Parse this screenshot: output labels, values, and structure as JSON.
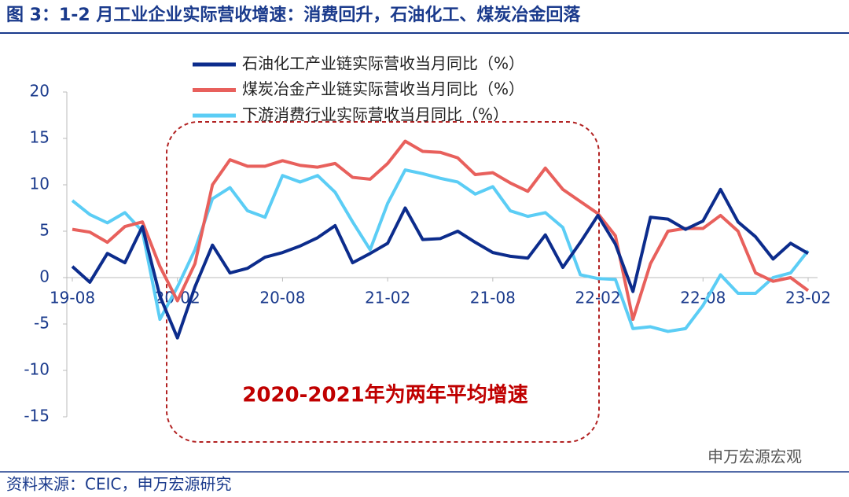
{
  "chart_data": {
    "type": "line",
    "title": "图 3：1-2 月工业企业实际营收增速：消费回升，石油化工、煤炭冶金回落",
    "annotation": "2020-2021年为两年平均增速",
    "source": "资料来源：CEIC，申万宏源研究",
    "watermark": "申万宏源宏观",
    "categories": [
      "19-08",
      null,
      null,
      null,
      null,
      null,
      "20-02",
      null,
      null,
      null,
      null,
      null,
      "20-08",
      null,
      null,
      null,
      null,
      null,
      "21-02",
      null,
      null,
      null,
      null,
      null,
      "21-08",
      null,
      null,
      null,
      null,
      null,
      "22-02",
      null,
      null,
      null,
      null,
      null,
      "22-08",
      null,
      null,
      null,
      null,
      null,
      "23-02"
    ],
    "series": [
      {
        "name": "石油化工产业链实际营收当月同比（%）",
        "color": "#0c2c8c",
        "values": [
          1.2,
          -0.5,
          2.6,
          1.6,
          5.5,
          -2,
          -6.5,
          -1,
          3.5,
          0.5,
          1,
          2.2,
          2.7,
          3.4,
          4.3,
          5.6,
          1.6,
          2.6,
          3.7,
          7.5,
          4.1,
          4.2,
          5,
          3.8,
          2.7,
          2.3,
          2.1,
          4.6,
          1.1,
          3.8,
          6.7,
          3.6,
          -1.5,
          6.5,
          6.3,
          5.2,
          6.1,
          9.5,
          6,
          4.4,
          2,
          3.7,
          2.6
        ]
      },
      {
        "name": "煤炭冶金产业链实际营收当月同比（%）",
        "color": "#e8605c",
        "values": [
          5.2,
          4.9,
          3.8,
          5.5,
          6,
          1.2,
          -2.5,
          1.5,
          10,
          12.7,
          12,
          12,
          12.6,
          12.1,
          11.9,
          12.3,
          10.8,
          10.6,
          12.3,
          14.7,
          13.6,
          13.5,
          12.9,
          11.1,
          11.3,
          10.2,
          9.3,
          11.8,
          9.5,
          8.2,
          6.9,
          4.5,
          -4.5,
          1.5,
          5,
          5.3,
          5.3,
          6.7,
          5,
          0.5,
          -0.4,
          0,
          -1.4
        ]
      },
      {
        "name": "下游消费行业实际营收当月同比（%）",
        "color": "#5bcdf5",
        "values": [
          8.3,
          6.8,
          5.9,
          7,
          5,
          -4.5,
          -1,
          3,
          8.5,
          9.7,
          7.2,
          6.5,
          11,
          10.3,
          11,
          9.2,
          6,
          3,
          8,
          11.6,
          11.2,
          10.7,
          10.3,
          9,
          9.8,
          7.2,
          6.6,
          7,
          5.4,
          0.3,
          -0.1,
          -0.2,
          -5.5,
          -5.3,
          -5.8,
          -5.5,
          -3,
          0.3,
          -1.7,
          -1.7,
          0,
          0.5,
          2.9
        ]
      }
    ],
    "ylim": [
      -15,
      20
    ],
    "yticks": [
      -15,
      -10,
      -5,
      0,
      5,
      10,
      15,
      20
    ]
  }
}
